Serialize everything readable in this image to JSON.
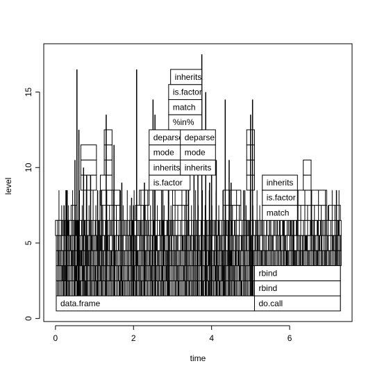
{
  "chart_data": {
    "type": "flame",
    "title": "",
    "xlabel": "time",
    "ylabel": "level",
    "xlim": [
      -0.3,
      7.6
    ],
    "ylim": [
      -0.2,
      18.2
    ],
    "x_ticks": [
      0,
      2,
      4,
      6
    ],
    "y_ticks": [
      0,
      5,
      10,
      15
    ],
    "grid": false,
    "labeled_frames": [
      {
        "label": "data.frame",
        "x0": 0.02,
        "x1": 5.1,
        "level": 1
      },
      {
        "label": "do.call",
        "x0": 5.1,
        "x1": 7.3,
        "level": 1
      },
      {
        "label": "rbind",
        "x0": 5.1,
        "x1": 7.3,
        "level": 2
      },
      {
        "label": "rbind",
        "x0": 5.1,
        "x1": 7.3,
        "level": 3
      },
      {
        "label": "is.factor",
        "x0": 2.4,
        "x1": 3.45,
        "level": 9
      },
      {
        "label": "inherits",
        "x0": 2.4,
        "x1": 3.45,
        "level": 10
      },
      {
        "label": "mode",
        "x0": 2.4,
        "x1": 3.45,
        "level": 11
      },
      {
        "label": "deparse",
        "x0": 2.4,
        "x1": 3.45,
        "level": 12
      },
      {
        "label": "inherits",
        "x0": 3.2,
        "x1": 4.1,
        "level": 10
      },
      {
        "label": "mode",
        "x0": 3.2,
        "x1": 4.1,
        "level": 11
      },
      {
        "label": "deparse",
        "x0": 3.2,
        "x1": 4.1,
        "level": 12
      },
      {
        "label": "%in%",
        "x0": 2.9,
        "x1": 3.75,
        "level": 13
      },
      {
        "label": "match",
        "x0": 2.9,
        "x1": 3.75,
        "level": 14
      },
      {
        "label": "is.factor",
        "x0": 2.9,
        "x1": 3.75,
        "level": 15
      },
      {
        "label": "inherits",
        "x0": 2.95,
        "x1": 3.75,
        "level": 16
      },
      {
        "label": "match",
        "x0": 5.3,
        "x1": 6.2,
        "level": 7
      },
      {
        "label": "is.factor",
        "x0": 5.3,
        "x1": 6.2,
        "level": 8
      },
      {
        "label": "inherits",
        "x0": 5.3,
        "x1": 6.2,
        "level": 9
      }
    ],
    "unlabeled_frames": [
      {
        "x0": 0.0,
        "x1": 0.15,
        "level": 6
      },
      {
        "x0": 0.4,
        "x1": 0.55,
        "level": 7
      },
      {
        "x0": 0.65,
        "x1": 1.05,
        "level": 9
      },
      {
        "x0": 0.65,
        "x1": 1.05,
        "level": 10
      },
      {
        "x0": 0.65,
        "x1": 1.05,
        "level": 11
      },
      {
        "x0": 1.15,
        "x1": 1.45,
        "level": 8
      },
      {
        "x0": 1.15,
        "x1": 1.45,
        "level": 9
      },
      {
        "x0": 1.25,
        "x1": 1.45,
        "level": 10
      },
      {
        "x0": 1.25,
        "x1": 1.45,
        "level": 11
      },
      {
        "x0": 1.25,
        "x1": 1.45,
        "level": 12
      },
      {
        "x0": 1.45,
        "x1": 1.65,
        "level": 7
      },
      {
        "x0": 1.45,
        "x1": 1.65,
        "level": 8
      },
      {
        "x0": 2.05,
        "x1": 2.3,
        "level": 7
      },
      {
        "x0": 2.15,
        "x1": 2.4,
        "level": 8
      },
      {
        "x0": 3.0,
        "x1": 3.4,
        "level": 6
      },
      {
        "x0": 3.0,
        "x1": 3.4,
        "level": 7
      },
      {
        "x0": 3.0,
        "x1": 3.4,
        "level": 8
      },
      {
        "x0": 4.3,
        "x1": 4.75,
        "level": 7
      },
      {
        "x0": 4.3,
        "x1": 4.75,
        "level": 8
      },
      {
        "x0": 4.6,
        "x1": 4.9,
        "level": 6
      },
      {
        "x0": 4.9,
        "x1": 5.1,
        "level": 9
      },
      {
        "x0": 4.9,
        "x1": 5.1,
        "level": 10
      },
      {
        "x0": 4.9,
        "x1": 5.1,
        "level": 11
      },
      {
        "x0": 4.9,
        "x1": 5.1,
        "level": 12
      },
      {
        "x0": 6.2,
        "x1": 6.55,
        "level": 6
      },
      {
        "x0": 6.2,
        "x1": 6.55,
        "level": 7
      },
      {
        "x0": 6.2,
        "x1": 6.55,
        "level": 8
      },
      {
        "x0": 6.55,
        "x1": 6.95,
        "level": 7
      },
      {
        "x0": 6.55,
        "x1": 6.95,
        "level": 8
      },
      {
        "x0": 6.95,
        "x1": 7.25,
        "level": 6
      },
      {
        "x0": 7.0,
        "x1": 7.3,
        "level": 7
      },
      {
        "x0": 6.35,
        "x1": 6.55,
        "level": 9
      },
      {
        "x0": 6.35,
        "x1": 6.55,
        "level": 10
      }
    ],
    "spikes": [
      {
        "x": 0.55,
        "top": 16.5
      },
      {
        "x": 0.6,
        "top": 12.5
      },
      {
        "x": 0.5,
        "top": 10.5
      },
      {
        "x": 0.3,
        "top": 8.5
      },
      {
        "x": 0.72,
        "top": 10
      },
      {
        "x": 1.3,
        "top": 13.5
      },
      {
        "x": 1.5,
        "top": 11.5
      },
      {
        "x": 2.08,
        "top": 16.5
      },
      {
        "x": 2.5,
        "top": 14.5
      },
      {
        "x": 2.55,
        "top": 13.5
      },
      {
        "x": 3.35,
        "top": 14.5
      },
      {
        "x": 3.55,
        "top": 16.5
      },
      {
        "x": 3.75,
        "top": 17.5
      },
      {
        "x": 3.85,
        "top": 15
      },
      {
        "x": 3.65,
        "top": 13
      },
      {
        "x": 4.0,
        "top": 12
      },
      {
        "x": 4.12,
        "top": 10.5
      },
      {
        "x": 4.35,
        "top": 14.5
      },
      {
        "x": 4.5,
        "top": 9
      },
      {
        "x": 5.05,
        "top": 14.5
      },
      {
        "x": 5.0,
        "top": 13.5
      },
      {
        "x": 0.28,
        "top": 8.5
      },
      {
        "x": 0.22,
        "top": 7.5
      },
      {
        "x": 1.7,
        "top": 9
      },
      {
        "x": 2.0,
        "top": 7.5
      },
      {
        "x": 1.08,
        "top": 8.5
      },
      {
        "x": 1.95,
        "top": 8
      },
      {
        "x": 7.2,
        "top": 8.5
      },
      {
        "x": 6.1,
        "top": 7.5
      },
      {
        "x": 4.85,
        "top": 8.5
      },
      {
        "x": 2.28,
        "top": 9
      },
      {
        "x": 3.95,
        "top": 9
      },
      {
        "x": 4.45,
        "top": 10.5
      },
      {
        "x": 0.9,
        "top": 9.5
      },
      {
        "x": 0.8,
        "top": 9.5
      },
      {
        "x": 1.18,
        "top": 8.5
      },
      {
        "x": 2.75,
        "top": 9.5
      },
      {
        "x": 2.9,
        "top": 10
      }
    ]
  }
}
